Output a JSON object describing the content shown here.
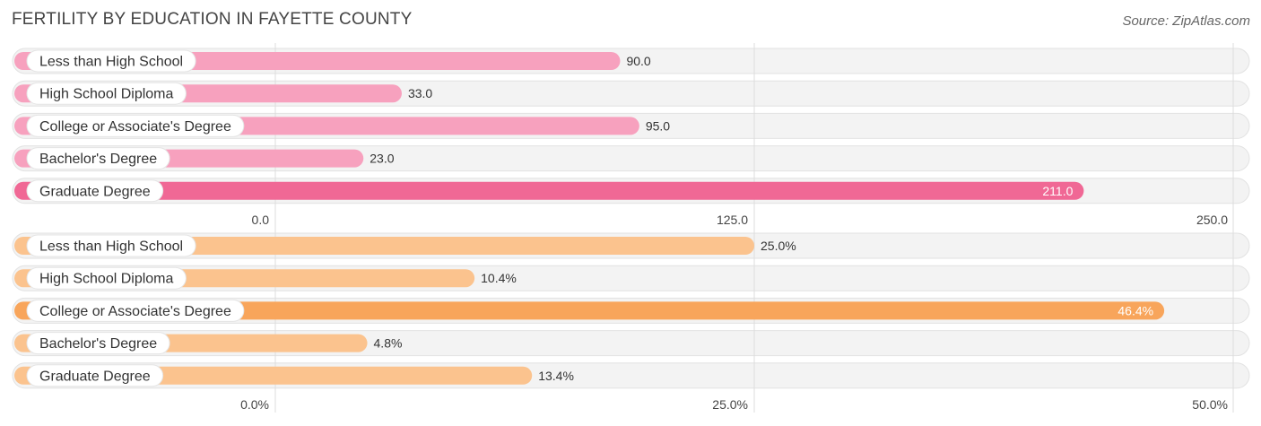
{
  "title": "FERTILITY BY EDUCATION IN FAYETTE COUNTY",
  "source": "Source: ZipAtlas.com",
  "chart_data": [
    {
      "type": "bar",
      "orientation": "horizontal",
      "categories": [
        "Less than High School",
        "High School Diploma",
        "College or Associate's Degree",
        "Bachelor's Degree",
        "Graduate Degree"
      ],
      "values": [
        90.0,
        33.0,
        95.0,
        23.0,
        211.0
      ],
      "value_labels": [
        "90.0",
        "33.0",
        "95.0",
        "23.0",
        "211.0"
      ],
      "xlim": [
        0,
        250
      ],
      "ticks": [
        0,
        125,
        250
      ],
      "tick_labels": [
        "0.0",
        "125.0",
        "250.0"
      ],
      "bar_color": "#f7a1be",
      "highlight_color": "#f06895",
      "highlight_index": 4,
      "grid": true
    },
    {
      "type": "bar",
      "orientation": "horizontal",
      "categories": [
        "Less than High School",
        "High School Diploma",
        "College or Associate's Degree",
        "Bachelor's Degree",
        "Graduate Degree"
      ],
      "values": [
        25.0,
        10.4,
        46.4,
        4.8,
        13.4
      ],
      "value_labels": [
        "25.0%",
        "10.4%",
        "46.4%",
        "4.8%",
        "13.4%"
      ],
      "xlim": [
        0,
        50
      ],
      "ticks": [
        0,
        25,
        50
      ],
      "tick_labels": [
        "0.0%",
        "25.0%",
        "50.0%"
      ],
      "bar_color": "#fbc38e",
      "highlight_color": "#f8a55b",
      "highlight_index": 2,
      "grid": true
    }
  ]
}
